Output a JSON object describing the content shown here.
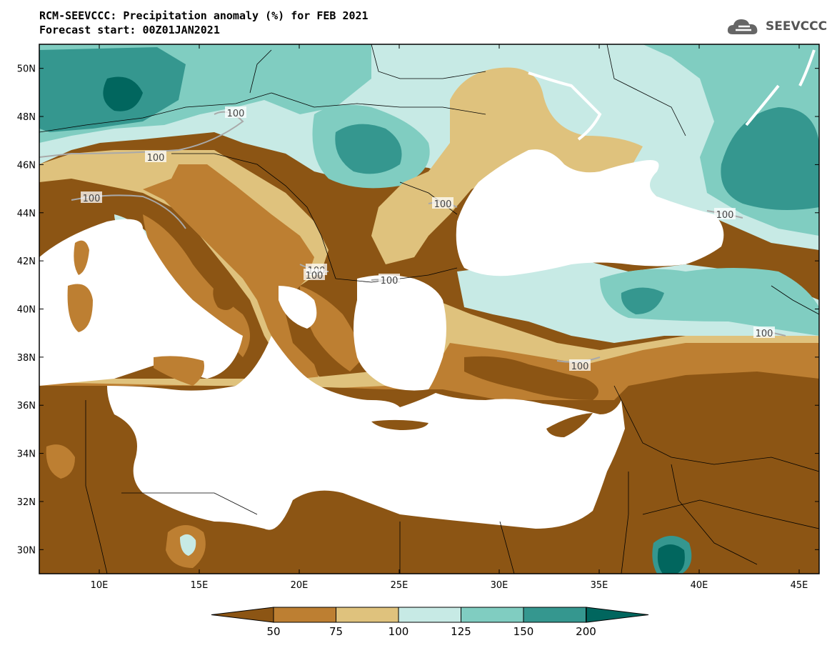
{
  "header": {
    "title_line1": "RCM-SEEVCCC: Precipitation anomaly (%) for FEB 2021",
    "title_line2": "Forecast start: 00Z01JAN2021"
  },
  "logo": {
    "text": "SEEVCCC",
    "icon": "cloud-logo-icon"
  },
  "map": {
    "lon_range": [
      7,
      46
    ],
    "lat_range": [
      29,
      51
    ],
    "lat_ticks": [
      "50N",
      "48N",
      "46N",
      "44N",
      "42N",
      "40N",
      "38N",
      "36N",
      "34N",
      "32N",
      "30N"
    ],
    "lon_ticks": [
      "10E",
      "15E",
      "20E",
      "25E",
      "30E",
      "35E",
      "40E",
      "45E"
    ],
    "contour_labels": [
      "100",
      "100",
      "100",
      "100",
      "100",
      "100",
      "100",
      "100",
      "100",
      "100"
    ]
  },
  "colors": {
    "lt50": "#8c5514",
    "c50_75": "#bd7f32",
    "c75_100": "#dfc27d",
    "c100_125": "#c7eae5",
    "c125_150": "#80cdc1",
    "c150_200": "#35978f",
    "gt200": "#01665e",
    "sea": "#ffffff"
  },
  "colorbar": {
    "labels": [
      "50",
      "75",
      "100",
      "125",
      "150",
      "200"
    ]
  }
}
